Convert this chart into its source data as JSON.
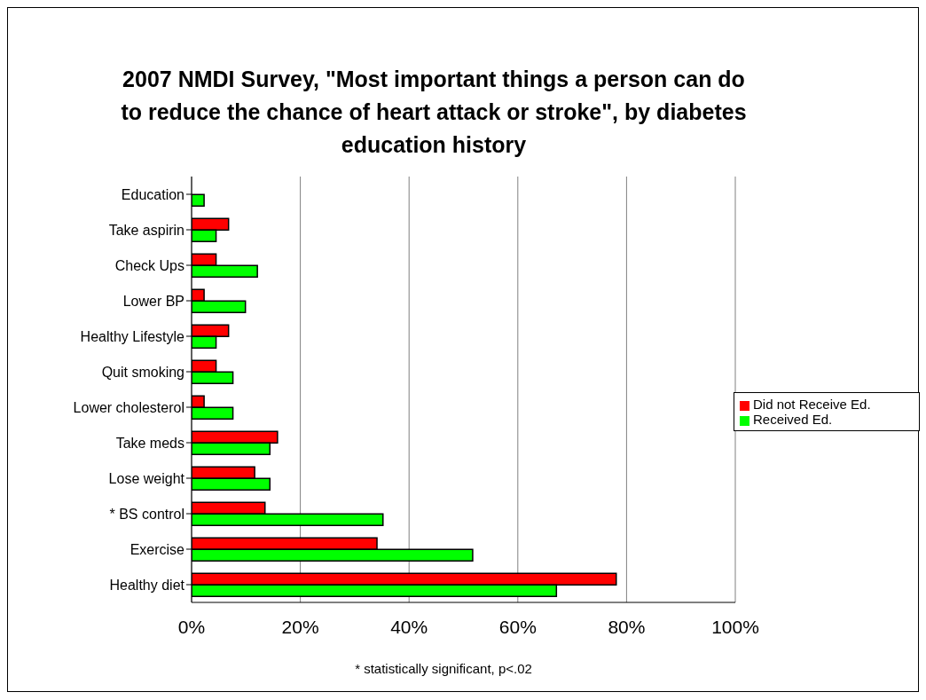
{
  "chart_data": {
    "type": "bar",
    "orientation": "horizontal",
    "title": "2007 NMDI Survey, \"Most important things a person can do to reduce the chance of heart attack or stroke\", by diabetes education history",
    "categories": [
      "Education",
      "Take aspirin",
      "Check Ups",
      "Lower BP",
      "Healthy Lifestyle",
      "Quit smoking",
      "Lower cholesterol",
      "Take meds",
      "Lose weight",
      "* BS control",
      "Exercise",
      "Healthy diet"
    ],
    "series": [
      {
        "name": "Did not Receive Ed.",
        "color": "#ff0000",
        "values": [
          null,
          6.8,
          4.5,
          2.3,
          6.8,
          4.5,
          2.3,
          15.8,
          11.6,
          13.5,
          34.1,
          78.1
        ]
      },
      {
        "name": "Received Ed.",
        "color": "#00ff00",
        "values": [
          2.3,
          4.5,
          12.1,
          9.9,
          4.5,
          7.6,
          7.6,
          14.4,
          14.4,
          35.2,
          51.7,
          67.1
        ]
      }
    ],
    "xlim": [
      0,
      100
    ],
    "xticks": [
      {
        "value": 0,
        "label": "0%"
      },
      {
        "value": 20,
        "label": "20%"
      },
      {
        "value": 40,
        "label": "40%"
      },
      {
        "value": 60,
        "label": "60%"
      },
      {
        "value": 80,
        "label": "80%"
      },
      {
        "value": 100,
        "label": "100%"
      }
    ],
    "grid": "x",
    "legend": "right",
    "annotations": [
      "* statistically significant, p<.02"
    ]
  }
}
